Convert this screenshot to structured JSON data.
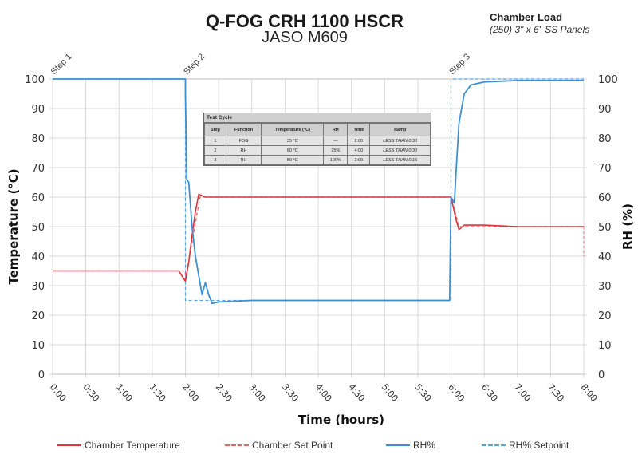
{
  "title": {
    "main": "Q-FOG CRH 1100 HSCR",
    "sub": "JASO M609"
  },
  "chamber_load": {
    "label": "Chamber Load",
    "value": "(250) 3\" x 6\" SS Panels"
  },
  "axes": {
    "x_label": "Time (hours)",
    "y_left_label": "Temperature  (°C)",
    "y_right_label": "RH (%)",
    "x_ticks": [
      "0:00",
      "0:30",
      "1:00",
      "1:30",
      "2:00",
      "2:30",
      "3:00",
      "3:30",
      "4:00",
      "4:30",
      "5:00",
      "5:30",
      "6:00",
      "6:30",
      "7:00",
      "7:30",
      "8:00"
    ],
    "y_left_ticks": [
      "0",
      "10",
      "20",
      "30",
      "40",
      "50",
      "60",
      "70",
      "80",
      "90",
      "100"
    ],
    "y_right_ticks": [
      "0",
      "10",
      "20",
      "30",
      "40",
      "50",
      "60",
      "70",
      "80",
      "90",
      "100"
    ]
  },
  "step_labels": [
    "Step 1",
    "Step 2",
    "Step 3"
  ],
  "test_cycle": {
    "caption": "Test Cycle",
    "headers": [
      "Step",
      "Function",
      "Temperature (°C)",
      "RH",
      "Time",
      "Ramp"
    ],
    "rows": [
      [
        "1",
        "FOG",
        "35 °C",
        "—",
        "2:00",
        "LESS THAN 0:30"
      ],
      [
        "2",
        "RH",
        "60 °C",
        "25%",
        "4:00",
        "LESS THAN 0:30"
      ],
      [
        "3",
        "RH",
        "50 °C",
        "100%",
        "2:00",
        "LESS THAN 0:15"
      ]
    ]
  },
  "legend": [
    {
      "label": "Chamber Temperature",
      "color": "#d9363e",
      "style": "solid"
    },
    {
      "label": "Chamber Set Point",
      "color": "#e8646b",
      "style": "dashed"
    },
    {
      "label": "RH%",
      "color": "#3d8fd1",
      "style": "solid"
    },
    {
      "label": "RH% Setpoint",
      "color": "#5aa5e0",
      "style": "dashed"
    }
  ],
  "colors": {
    "temperature": "#d9363e",
    "temperature_setpoint": "#e8646b",
    "rh": "#3d8fd1",
    "rh_setpoint": "#5aa5e0",
    "grid": "#d9d9d9"
  },
  "chart_data": {
    "type": "line",
    "title": "Q-FOG CRH 1100 HSCR — JASO M609",
    "xlabel": "Time (hours)",
    "ylabel": "Temperature (°C)",
    "y2label": "RH (%)",
    "xlim": [
      0,
      8
    ],
    "ylim": [
      0,
      100
    ],
    "y2lim": [
      0,
      100
    ],
    "grid": true,
    "legend_position": "bottom",
    "annotations": [
      "Step 1 at 0:00",
      "Step 2 at 2:00",
      "Step 3 at 6:00"
    ],
    "series": [
      {
        "name": "Chamber Temperature",
        "axis": "left",
        "x": [
          0,
          0.5,
          1.0,
          1.5,
          1.9,
          2.0,
          2.05,
          2.1,
          2.15,
          2.2,
          2.3,
          2.5,
          3.0,
          4.0,
          5.0,
          5.5,
          6.0,
          6.03,
          6.08,
          6.12,
          6.2,
          6.5,
          7.0,
          7.5,
          8.0
        ],
        "y": [
          35,
          35,
          35,
          35,
          35,
          31.5,
          38,
          47,
          55,
          61,
          60,
          60,
          60,
          60,
          60,
          60,
          60,
          57,
          52,
          49,
          50.5,
          50.5,
          50,
          50,
          50
        ]
      },
      {
        "name": "Chamber Set Point",
        "axis": "left",
        "x": [
          0,
          2.0,
          2.0,
          2.22,
          6.0,
          6.12,
          8.0
        ],
        "y": [
          35,
          35,
          32,
          60,
          60,
          50,
          50
        ]
      },
      {
        "name": "RH%",
        "axis": "right",
        "x": [
          0,
          2.0,
          2.0,
          2.02,
          2.05,
          2.1,
          2.15,
          2.25,
          2.3,
          2.35,
          2.4,
          2.5,
          3.0,
          4.0,
          5.0,
          5.98,
          6.0,
          6.05,
          6.08,
          6.12,
          6.2,
          6.3,
          6.5,
          7.0,
          8.0
        ],
        "y": [
          100,
          100,
          95,
          66,
          65,
          50,
          40,
          27,
          31,
          27,
          24,
          24.5,
          25,
          25,
          25,
          25,
          60,
          58,
          70,
          85,
          95,
          98,
          99,
          99.5,
          99.5
        ]
      },
      {
        "name": "RH% Setpoint",
        "axis": "right",
        "x": [
          0,
          2.0,
          2.0,
          6.0,
          6.0,
          8.0
        ],
        "y": [
          100,
          100,
          25,
          25,
          100,
          100
        ]
      }
    ]
  }
}
